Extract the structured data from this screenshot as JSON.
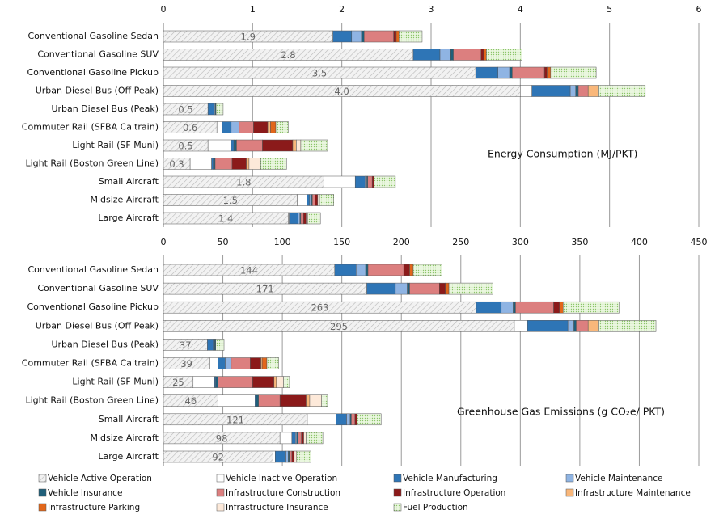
{
  "chart_data": [
    {
      "type": "stacked-bar-horizontal",
      "annotation": "Energy Consumption  (MJ/PKT)",
      "categories": [
        "Conventional Gasoline Sedan",
        "Conventional Gasoline SUV",
        "Conventional Gasoline Pickup",
        "Urban Diesel Bus (Off Peak)",
        "Urban Diesel Bus (Peak)",
        "Commuter Rail (SFBA Caltrain)",
        "Light Rail (SF Muni)",
        "Light Rail (Boston Green Line)",
        "Small Aircraft",
        "Midsize Aircraft",
        "Large Aircraft"
      ],
      "xlim": [
        0,
        6
      ],
      "xticks": [
        0,
        1,
        2,
        3,
        4,
        5,
        6
      ],
      "grid": true,
      "series": [
        {
          "name": "Vehicle Active Operation",
          "color": "#e6e6e6",
          "pattern": "hatch",
          "values": [
            1.9,
            2.8,
            3.5,
            4.0,
            0.5,
            0.6,
            0.5,
            0.3,
            1.8,
            1.5,
            1.4
          ],
          "value_labels": [
            "1.9",
            "2.8",
            "3.5",
            "4.0",
            "0.5",
            "0.6",
            "0.5",
            "0.3",
            "1.8",
            "1.5",
            "1.4"
          ]
        },
        {
          "name": "Vehicle Inactive Operation",
          "color": "#ffffff",
          "values": [
            0,
            0,
            0,
            0.13,
            0,
            0.06,
            0.26,
            0.24,
            0.35,
            0.11,
            0.01
          ]
        },
        {
          "name": "Vehicle Manufacturing",
          "color": "#2e75b6",
          "values": [
            0.21,
            0.3,
            0.25,
            0.43,
            0.07,
            0.1,
            0.03,
            0.02,
            0.11,
            0.03,
            0.1
          ]
        },
        {
          "name": "Vehicle Maintenance",
          "color": "#8fb4e3",
          "values": [
            0.11,
            0.12,
            0.13,
            0.06,
            0.01,
            0.09,
            0,
            0,
            0.02,
            0.02,
            0.02
          ]
        },
        {
          "name": "Vehicle Insurance",
          "color": "#1f5f7a",
          "values": [
            0.03,
            0.03,
            0.03,
            0.03,
            0.01,
            0,
            0.03,
            0.02,
            0.01,
            0.01,
            0.01
          ]
        },
        {
          "name": "Infrastructure Construction",
          "color": "#dc7f7f",
          "values": [
            0.33,
            0.31,
            0.36,
            0.11,
            0,
            0.16,
            0.29,
            0.19,
            0.05,
            0.03,
            0.03
          ]
        },
        {
          "name": "Infrastructure Operation",
          "color": "#8b1a1a",
          "values": [
            0.03,
            0.03,
            0.03,
            0,
            0,
            0.16,
            0.34,
            0.16,
            0.02,
            0.03,
            0.03
          ]
        },
        {
          "name": "Infrastructure Maintenance",
          "color": "#f9b77a",
          "values": [
            0,
            0,
            0,
            0.12,
            0,
            0.03,
            0.04,
            0.03,
            0,
            0,
            0
          ]
        },
        {
          "name": "Infrastructure Parking",
          "color": "#e2661a",
          "values": [
            0.03,
            0.03,
            0.04,
            0,
            0,
            0.06,
            0,
            0,
            0,
            0,
            0
          ]
        },
        {
          "name": "Infrastructure Insurance",
          "color": "#fde9d9",
          "values": [
            0,
            0,
            0,
            0,
            0,
            0,
            0.05,
            0.13,
            0,
            0.02,
            0.02
          ]
        },
        {
          "name": "Fuel Production",
          "color": "#d8f0c4",
          "pattern": "dots",
          "values": [
            0.26,
            0.4,
            0.51,
            0.52,
            0.08,
            0.14,
            0.3,
            0.29,
            0.24,
            0.16,
            0.14
          ]
        }
      ]
    },
    {
      "type": "stacked-bar-horizontal",
      "annotation": "Greenhouse Gas Emissions  (g CO₂e/ PKT)",
      "categories": [
        "Conventional Gasoline Sedan",
        "Conventional Gasoline SUV",
        "Conventional Gasoline Pickup",
        "Urban Diesel Bus (Off Peak)",
        "Urban Diesel Bus (Peak)",
        "Commuter Rail (SFBA Caltrain)",
        "Light Rail (SF Muni)",
        "Light Rail (Boston Green Line)",
        "Small Aircraft",
        "Midsize Aircraft",
        "Large Aircraft"
      ],
      "xlim": [
        0,
        450
      ],
      "xticks": [
        0,
        50,
        100,
        150,
        200,
        250,
        300,
        350,
        400,
        450
      ],
      "grid": true,
      "series": [
        {
          "color": "#e6e6e6",
          "pattern": "hatch",
          "values": [
            144,
            171,
            263,
            295,
            37,
            39,
            25,
            46,
            121,
            98,
            92
          ]
        },
        {
          "color": "#ffffff",
          "values": [
            0,
            0,
            0,
            11,
            0,
            7,
            18,
            31,
            24,
            10,
            2
          ]
        },
        {
          "color": "#2e75b6",
          "values": [
            18,
            24,
            21,
            34,
            5,
            6,
            1,
            1,
            9,
            3,
            9
          ]
        },
        {
          "color": "#8fb4e3",
          "values": [
            8,
            10,
            10,
            5,
            1,
            5,
            0,
            0,
            3,
            1,
            2
          ]
        },
        {
          "color": "#1f5f7a",
          "values": [
            2,
            2,
            2,
            2,
            1,
            0,
            2,
            2,
            1,
            1,
            1
          ]
        },
        {
          "color": "#dc7f7f",
          "values": [
            30,
            25,
            32,
            10,
            0,
            16,
            29,
            18,
            3,
            3,
            2
          ]
        },
        {
          "color": "#8b1a1a",
          "values": [
            5,
            5,
            5,
            0,
            0,
            9,
            18,
            22,
            2,
            2,
            2
          ]
        },
        {
          "color": "#f9b77a",
          "values": [
            0,
            0,
            0,
            9,
            0,
            1,
            2,
            3,
            0,
            0,
            0
          ]
        },
        {
          "color": "#e2661a",
          "values": [
            3,
            3,
            3,
            0,
            0,
            4,
            0,
            0,
            0,
            0,
            0
          ]
        },
        {
          "color": "#fde9d9",
          "values": [
            0,
            0,
            0,
            0,
            0,
            0,
            6,
            10,
            0,
            2,
            2
          ]
        },
        {
          "color": "#d8f0c4",
          "pattern": "dots",
          "values": [
            24,
            37,
            47,
            48,
            7,
            10,
            5,
            5,
            20,
            14,
            12
          ]
        }
      ]
    }
  ]
}
